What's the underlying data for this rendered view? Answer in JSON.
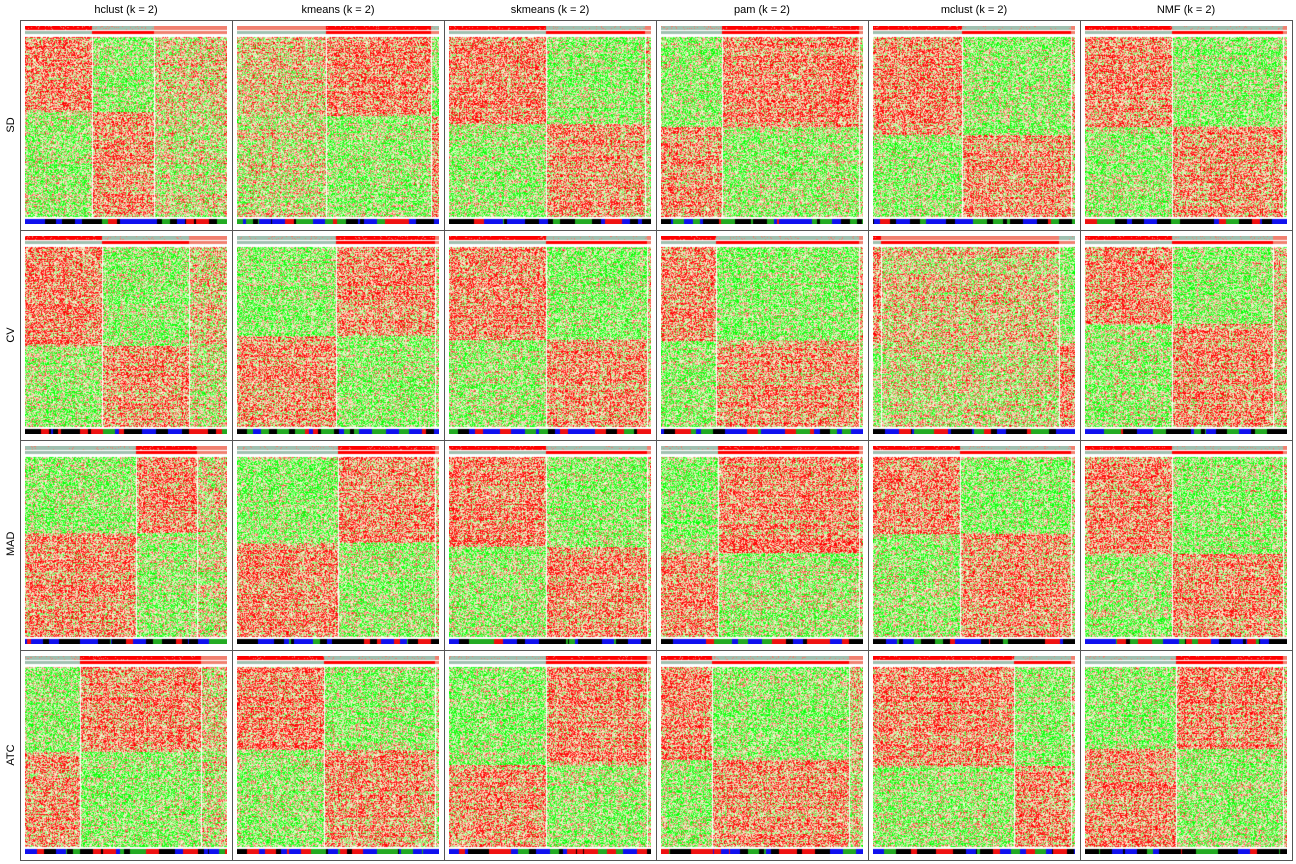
{
  "chart_data": {
    "type": "heatmap",
    "columns": [
      "hclust (k = 2)",
      "kmeans (k = 2)",
      "skmeans (k = 2)",
      "pam (k = 2)",
      "mclust (k = 2)",
      "NMF (k = 2)"
    ],
    "rows": [
      "SD",
      "CV",
      "MAD",
      "ATC"
    ],
    "colors": {
      "high": "#ff0000",
      "mid": "#ffffe0",
      "low": "#00ff00",
      "class_bar_1": "#ff0000",
      "class_bar_2": "#f08070",
      "class_bar_3": "#a0c0b0",
      "annotation_black": "#000000",
      "annotation_green": "#22aa22",
      "annotation_red": "#ee1111",
      "annotation_blue": "#1010ee"
    },
    "panels": [
      {
        "row": "SD",
        "col": "hclust (k = 2)",
        "splits": [
          0.33,
          0.64
        ],
        "pattern": [
          "high",
          "low",
          "mixed"
        ]
      },
      {
        "row": "SD",
        "col": "kmeans (k = 2)",
        "splits": [
          0.44,
          0.96
        ],
        "pattern": [
          "mixed",
          "high",
          "low"
        ]
      },
      {
        "row": "SD",
        "col": "skmeans (k = 2)",
        "splits": [
          0.48,
          0.97
        ],
        "pattern": [
          "high",
          "low",
          "mixed"
        ]
      },
      {
        "row": "SD",
        "col": "pam (k = 2)",
        "splits": [
          0.3,
          0.98
        ],
        "pattern": [
          "low",
          "high",
          "mixed"
        ]
      },
      {
        "row": "SD",
        "col": "mclust (k = 2)",
        "splits": [
          0.44,
          0.98
        ],
        "pattern": [
          "high",
          "low",
          "mixed"
        ]
      },
      {
        "row": "SD",
        "col": "NMF (k = 2)",
        "splits": [
          0.43,
          0.98
        ],
        "pattern": [
          "high",
          "low",
          "mixed"
        ]
      },
      {
        "row": "CV",
        "col": "hclust (k = 2)",
        "splits": [
          0.38,
          0.81
        ],
        "pattern": [
          "high",
          "low",
          "mixed"
        ]
      },
      {
        "row": "CV",
        "col": "kmeans (k = 2)",
        "splits": [
          0.49,
          0.98
        ],
        "pattern": [
          "low",
          "high",
          "mixed"
        ]
      },
      {
        "row": "CV",
        "col": "skmeans (k = 2)",
        "splits": [
          0.48,
          0.98
        ],
        "pattern": [
          "high",
          "low",
          "mixed"
        ]
      },
      {
        "row": "CV",
        "col": "pam (k = 2)",
        "splits": [
          0.27,
          0.98
        ],
        "pattern": [
          "high",
          "low",
          "mixed"
        ]
      },
      {
        "row": "CV",
        "col": "mclust (k = 2)",
        "splits": [
          0.04,
          0.92
        ],
        "pattern": [
          "high",
          "mixed",
          "low"
        ]
      },
      {
        "row": "CV",
        "col": "NMF (k = 2)",
        "splits": [
          0.43,
          0.93
        ],
        "pattern": [
          "high",
          "low",
          "mixed"
        ]
      },
      {
        "row": "MAD",
        "col": "hclust (k = 2)",
        "splits": [
          0.55,
          0.85
        ],
        "pattern": [
          "low",
          "high",
          "mixed"
        ]
      },
      {
        "row": "MAD",
        "col": "kmeans (k = 2)",
        "splits": [
          0.5,
          0.98
        ],
        "pattern": [
          "low",
          "high",
          "mixed"
        ]
      },
      {
        "row": "MAD",
        "col": "skmeans (k = 2)",
        "splits": [
          0.48,
          0.98
        ],
        "pattern": [
          "high",
          "low",
          "mixed"
        ]
      },
      {
        "row": "MAD",
        "col": "pam (k = 2)",
        "splits": [
          0.28,
          0.98
        ],
        "pattern": [
          "low",
          "high",
          "mixed"
        ]
      },
      {
        "row": "MAD",
        "col": "mclust (k = 2)",
        "splits": [
          0.43,
          0.98
        ],
        "pattern": [
          "high",
          "low",
          "mixed"
        ]
      },
      {
        "row": "MAD",
        "col": "NMF (k = 2)",
        "splits": [
          0.43,
          0.98
        ],
        "pattern": [
          "high",
          "low",
          "mixed"
        ]
      },
      {
        "row": "ATC",
        "col": "hclust (k = 2)",
        "splits": [
          0.27,
          0.87
        ],
        "pattern": [
          "low",
          "high",
          "mixed"
        ]
      },
      {
        "row": "ATC",
        "col": "kmeans (k = 2)",
        "splits": [
          0.43,
          0.98
        ],
        "pattern": [
          "high",
          "low",
          "mixed"
        ]
      },
      {
        "row": "ATC",
        "col": "skmeans (k = 2)",
        "splits": [
          0.48,
          0.98
        ],
        "pattern": [
          "low",
          "high",
          "mixed"
        ]
      },
      {
        "row": "ATC",
        "col": "pam (k = 2)",
        "splits": [
          0.25,
          0.93
        ],
        "pattern": [
          "high",
          "low",
          "mixed"
        ]
      },
      {
        "row": "ATC",
        "col": "mclust (k = 2)",
        "splits": [
          0.7,
          0.98
        ],
        "pattern": [
          "high",
          "low",
          "mixed"
        ]
      },
      {
        "row": "ATC",
        "col": "NMF (k = 2)",
        "splits": [
          0.45,
          0.98
        ],
        "pattern": [
          "low",
          "high",
          "mixed"
        ]
      }
    ]
  }
}
